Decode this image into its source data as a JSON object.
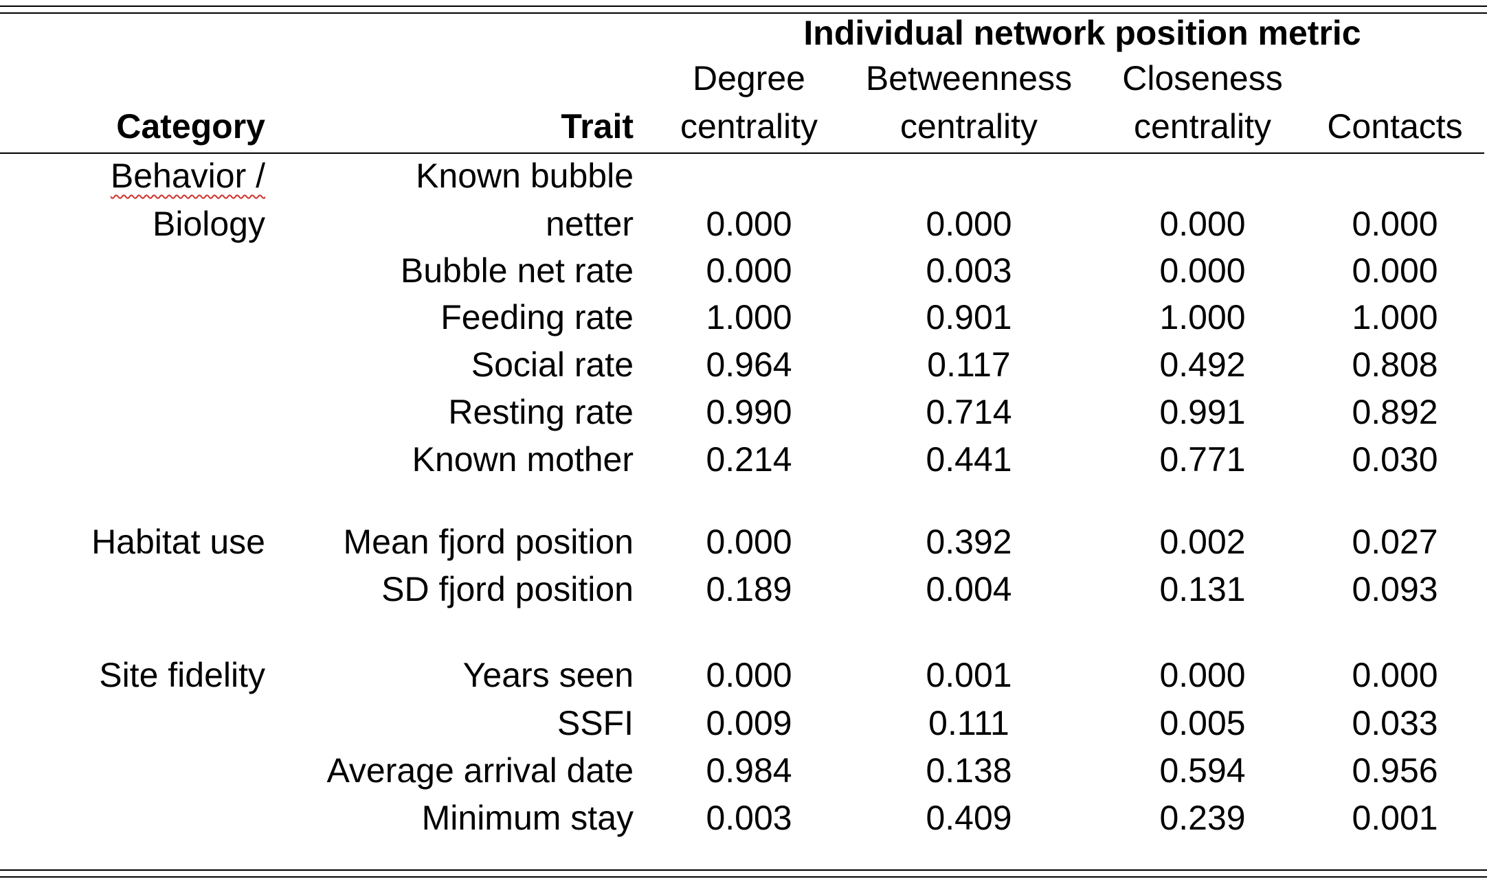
{
  "header": {
    "spanner": "Individual network position metric",
    "category_label": "Category",
    "trait_label": "Trait",
    "columns": [
      {
        "line1": "Degree",
        "line2": "centrality"
      },
      {
        "line1": "Betweenness",
        "line2": "centrality"
      },
      {
        "line1": "Closeness",
        "line2": "centrality"
      },
      {
        "line1": "",
        "line2": "Contacts"
      }
    ]
  },
  "categories": {
    "behavior_line1": "Behavior /",
    "behavior_line2": "Biology",
    "habitat": "Habitat use",
    "site": "Site fidelity"
  },
  "rows": [
    {
      "trait_line1": "Known bubble",
      "trait": "netter",
      "values": [
        "0.000",
        "0.000",
        "0.000",
        "0.000"
      ]
    },
    {
      "trait": "Bubble net rate",
      "values": [
        "0.000",
        "0.003",
        "0.000",
        "0.000"
      ]
    },
    {
      "trait": "Feeding rate",
      "values": [
        "1.000",
        "0.901",
        "1.000",
        "1.000"
      ]
    },
    {
      "trait": "Social rate",
      "values": [
        "0.964",
        "0.117",
        "0.492",
        "0.808"
      ]
    },
    {
      "trait": "Resting rate",
      "values": [
        "0.990",
        "0.714",
        "0.991",
        "0.892"
      ]
    },
    {
      "trait": "Known mother",
      "values": [
        "0.214",
        "0.441",
        "0.771",
        "0.030"
      ]
    },
    {
      "trait": "Mean fjord position",
      "values": [
        "0.000",
        "0.392",
        "0.002",
        "0.027"
      ]
    },
    {
      "trait": "SD fjord position",
      "values": [
        "0.189",
        "0.004",
        "0.131",
        "0.093"
      ]
    },
    {
      "trait": "Years seen",
      "values": [
        "0.000",
        "0.001",
        "0.000",
        "0.000"
      ]
    },
    {
      "trait": "SSFI",
      "values": [
        "0.009",
        "0.111",
        "0.005",
        "0.033"
      ]
    },
    {
      "trait": "Average arrival date",
      "values": [
        "0.984",
        "0.138",
        "0.594",
        "0.956"
      ]
    },
    {
      "trait": "Minimum stay",
      "values": [
        "0.003",
        "0.409",
        "0.239",
        "0.001"
      ]
    }
  ]
}
